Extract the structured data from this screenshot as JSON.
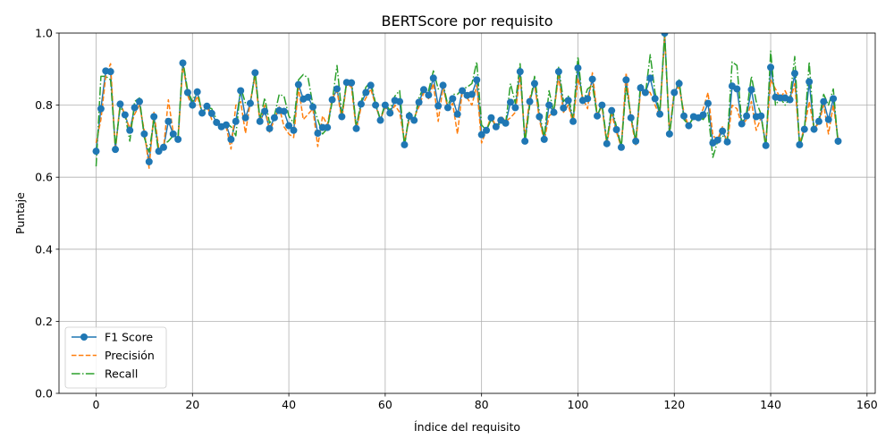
{
  "chart_data": {
    "type": "line",
    "title": "BERTScore por requisito",
    "xlabel": "Índice del requisito",
    "ylabel": "Puntaje",
    "xlim": [
      -7.7,
      161.7
    ],
    "ylim": [
      0.0,
      1.0
    ],
    "x_ticks": [
      0,
      20,
      40,
      60,
      80,
      100,
      120,
      140,
      160
    ],
    "y_ticks": [
      0.0,
      0.2,
      0.4,
      0.6,
      0.8,
      1.0
    ],
    "x_tick_labels": [
      "0",
      "20",
      "40",
      "60",
      "80",
      "100",
      "120",
      "140",
      "160"
    ],
    "y_tick_labels": [
      "0.0",
      "0.2",
      "0.4",
      "0.6",
      "0.8",
      "1.0"
    ],
    "grid": true,
    "legend_position": "lower-left",
    "series": [
      {
        "name": "F1 Score",
        "color": "#1f77b4",
        "style": "solid-with-markers",
        "values": [
          0.672,
          0.79,
          0.895,
          0.893,
          0.677,
          0.803,
          0.773,
          0.73,
          0.793,
          0.81,
          0.72,
          0.643,
          0.768,
          0.672,
          0.683,
          0.755,
          0.72,
          0.705,
          0.917,
          0.835,
          0.8,
          0.837,
          0.778,
          0.797,
          0.777,
          0.752,
          0.74,
          0.745,
          0.705,
          0.755,
          0.84,
          0.765,
          0.805,
          0.89,
          0.755,
          0.783,
          0.735,
          0.765,
          0.785,
          0.783,
          0.743,
          0.73,
          0.857,
          0.817,
          0.822,
          0.795,
          0.722,
          0.738,
          0.738,
          0.815,
          0.845,
          0.768,
          0.863,
          0.862,
          0.735,
          0.803,
          0.835,
          0.855,
          0.8,
          0.758,
          0.8,
          0.778,
          0.813,
          0.81,
          0.69,
          0.77,
          0.758,
          0.808,
          0.843,
          0.828,
          0.875,
          0.798,
          0.855,
          0.793,
          0.818,
          0.775,
          0.84,
          0.827,
          0.83,
          0.87,
          0.718,
          0.73,
          0.765,
          0.74,
          0.758,
          0.75,
          0.808,
          0.793,
          0.893,
          0.7,
          0.81,
          0.86,
          0.768,
          0.705,
          0.8,
          0.78,
          0.893,
          0.792,
          0.813,
          0.755,
          0.903,
          0.813,
          0.818,
          0.872,
          0.77,
          0.8,
          0.693,
          0.785,
          0.732,
          0.683,
          0.87,
          0.765,
          0.7,
          0.848,
          0.835,
          0.875,
          0.818,
          0.775,
          1.0,
          0.72,
          0.835,
          0.86,
          0.77,
          0.743,
          0.768,
          0.765,
          0.773,
          0.805,
          0.695,
          0.703,
          0.728,
          0.698,
          0.853,
          0.845,
          0.748,
          0.77,
          0.843,
          0.768,
          0.77,
          0.688,
          0.905,
          0.822,
          0.82,
          0.82,
          0.815,
          0.888,
          0.69,
          0.733,
          0.865,
          0.733,
          0.755,
          0.81,
          0.76,
          0.818,
          0.7
        ]
      },
      {
        "name": "Precisión",
        "color": "#ff7f0e",
        "style": "dashed",
        "values": [
          0.695,
          0.76,
          0.88,
          0.915,
          0.672,
          0.81,
          0.77,
          0.735,
          0.775,
          0.8,
          0.73,
          0.625,
          0.78,
          0.68,
          0.68,
          0.815,
          0.725,
          0.7,
          0.915,
          0.828,
          0.79,
          0.825,
          0.78,
          0.8,
          0.76,
          0.745,
          0.74,
          0.74,
          0.678,
          0.8,
          0.81,
          0.722,
          0.81,
          0.88,
          0.75,
          0.8,
          0.725,
          0.76,
          0.795,
          0.74,
          0.72,
          0.71,
          0.85,
          0.76,
          0.775,
          0.79,
          0.685,
          0.77,
          0.745,
          0.82,
          0.84,
          0.76,
          0.86,
          0.85,
          0.73,
          0.795,
          0.82,
          0.845,
          0.8,
          0.76,
          0.795,
          0.77,
          0.8,
          0.78,
          0.7,
          0.76,
          0.765,
          0.795,
          0.835,
          0.818,
          0.86,
          0.755,
          0.85,
          0.79,
          0.805,
          0.72,
          0.84,
          0.82,
          0.8,
          0.855,
          0.695,
          0.73,
          0.77,
          0.74,
          0.77,
          0.755,
          0.765,
          0.78,
          0.88,
          0.71,
          0.82,
          0.86,
          0.76,
          0.7,
          0.77,
          0.78,
          0.88,
          0.78,
          0.8,
          0.75,
          0.875,
          0.82,
          0.79,
          0.89,
          0.775,
          0.795,
          0.69,
          0.775,
          0.725,
          0.683,
          0.89,
          0.76,
          0.69,
          0.84,
          0.84,
          0.835,
          0.8,
          0.77,
          0.99,
          0.725,
          0.84,
          0.85,
          0.78,
          0.74,
          0.77,
          0.76,
          0.79,
          0.835,
          0.715,
          0.705,
          0.74,
          0.695,
          0.8,
          0.79,
          0.745,
          0.76,
          0.81,
          0.73,
          0.765,
          0.695,
          0.87,
          0.845,
          0.82,
          0.84,
          0.81,
          0.86,
          0.695,
          0.735,
          0.81,
          0.735,
          0.75,
          0.8,
          0.72,
          0.8,
          0.705
        ]
      },
      {
        "name": "Recall",
        "color": "#2ca02c",
        "style": "dashdot",
        "values": [
          0.63,
          0.88,
          0.88,
          0.87,
          0.685,
          0.795,
          0.775,
          0.7,
          0.81,
          0.82,
          0.71,
          0.67,
          0.76,
          0.665,
          0.69,
          0.7,
          0.715,
          0.71,
          0.925,
          0.84,
          0.81,
          0.845,
          0.775,
          0.795,
          0.79,
          0.76,
          0.74,
          0.75,
          0.74,
          0.715,
          0.85,
          0.805,
          0.8,
          0.895,
          0.76,
          0.82,
          0.75,
          0.77,
          0.83,
          0.825,
          0.77,
          0.75,
          0.87,
          0.885,
          0.875,
          0.8,
          0.76,
          0.72,
          0.735,
          0.81,
          0.91,
          0.775,
          0.865,
          0.87,
          0.74,
          0.81,
          0.85,
          0.865,
          0.805,
          0.76,
          0.805,
          0.785,
          0.825,
          0.84,
          0.685,
          0.78,
          0.755,
          0.82,
          0.85,
          0.84,
          0.895,
          0.845,
          0.86,
          0.8,
          0.83,
          0.83,
          0.845,
          0.85,
          0.86,
          0.92,
          0.745,
          0.73,
          0.76,
          0.74,
          0.75,
          0.75,
          0.86,
          0.805,
          0.915,
          0.695,
          0.8,
          0.88,
          0.78,
          0.71,
          0.84,
          0.78,
          0.905,
          0.81,
          0.825,
          0.76,
          0.935,
          0.805,
          0.845,
          0.855,
          0.77,
          0.805,
          0.7,
          0.795,
          0.74,
          0.685,
          0.85,
          0.77,
          0.7,
          0.86,
          0.83,
          0.94,
          0.835,
          0.78,
          1.0,
          0.715,
          0.83,
          0.87,
          0.76,
          0.745,
          0.765,
          0.77,
          0.76,
          0.78,
          0.655,
          0.7,
          0.715,
          0.7,
          0.92,
          0.91,
          0.75,
          0.78,
          0.88,
          0.81,
          0.775,
          0.68,
          0.95,
          0.8,
          0.82,
          0.8,
          0.82,
          0.935,
          0.685,
          0.73,
          0.92,
          0.73,
          0.76,
          0.83,
          0.8,
          0.845,
          0.69
        ]
      }
    ]
  }
}
